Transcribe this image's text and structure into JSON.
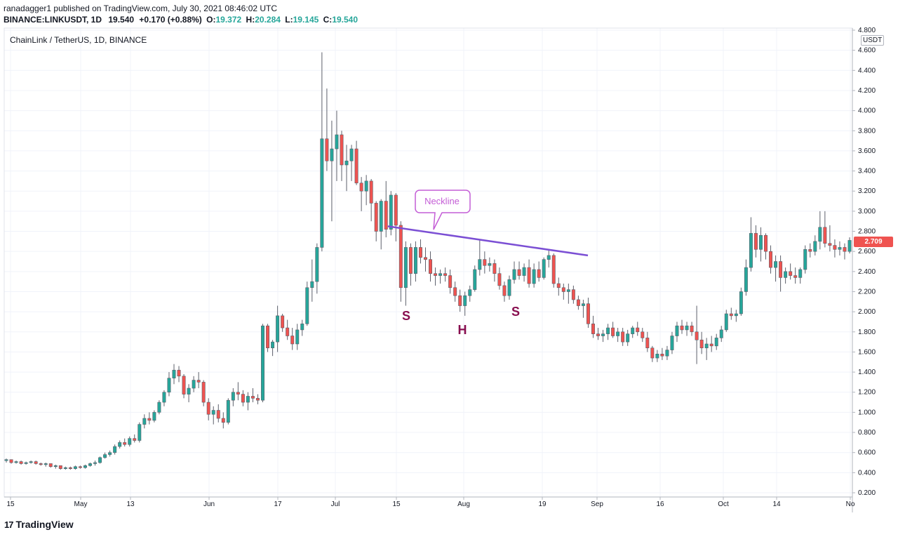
{
  "header": {
    "published": "ranadagger1 published on TradingView.com, July 30, 2021 08:46:02 UTC",
    "symbol": "BINANCE:LINKUSDT, 1D",
    "last": "19.540",
    "change": "+0.170 (+0.88%)",
    "o_label": "O:",
    "o_value": "19.372",
    "h_label": "H:",
    "h_value": "20.284",
    "l_label": "L:",
    "l_value": "19.145",
    "c_label": "C:",
    "c_value": "19.540"
  },
  "chart_title": "ChainLink / TetherUS, 1D, BINANCE",
  "unit_badge": "USDT",
  "price_tag": "2.709",
  "footer": {
    "brand": "TradingView",
    "mark": "17"
  },
  "colors": {
    "up": "#26a69a",
    "down": "#ef5350",
    "neckline": "#7b4fd4",
    "callout": "#c45ed6",
    "pattern_label": "#880e4f"
  },
  "annotations": {
    "neckline_label": "Neckline",
    "left_shoulder": "S",
    "head": "H",
    "right_shoulder": "S"
  },
  "chart_data": {
    "type": "candlestick",
    "y_ticks": [
      "4.800",
      "4.600",
      "4.400",
      "4.200",
      "4.000",
      "3.800",
      "3.600",
      "3.400",
      "3.200",
      "3.000",
      "2.800",
      "2.600",
      "2.400",
      "2.200",
      "2.000",
      "1.800",
      "1.600",
      "1.400",
      "1.200",
      "1.000",
      "0.800",
      "0.600",
      "0.400",
      "0.200"
    ],
    "x_ticks": [
      "15",
      "May",
      "13",
      "Jun",
      "17",
      "Jul",
      "15",
      "Aug",
      "19",
      "Sep",
      "16",
      "Oct",
      "14",
      "No"
    ],
    "ylim": [
      0.2,
      4.8
    ],
    "neckline": [
      [
        2.85,
        0
      ],
      [
        2.56,
        1
      ]
    ],
    "candles": [
      [
        0.52,
        0.54,
        0.5,
        0.53
      ],
      [
        0.53,
        0.53,
        0.49,
        0.5
      ],
      [
        0.5,
        0.52,
        0.49,
        0.51
      ],
      [
        0.51,
        0.52,
        0.48,
        0.49
      ],
      [
        0.49,
        0.51,
        0.48,
        0.5
      ],
      [
        0.5,
        0.52,
        0.49,
        0.51
      ],
      [
        0.51,
        0.52,
        0.48,
        0.49
      ],
      [
        0.49,
        0.5,
        0.47,
        0.48
      ],
      [
        0.48,
        0.5,
        0.46,
        0.49
      ],
      [
        0.49,
        0.49,
        0.45,
        0.46
      ],
      [
        0.46,
        0.48,
        0.44,
        0.47
      ],
      [
        0.47,
        0.47,
        0.43,
        0.44
      ],
      [
        0.44,
        0.46,
        0.43,
        0.45
      ],
      [
        0.45,
        0.46,
        0.43,
        0.44
      ],
      [
        0.44,
        0.47,
        0.43,
        0.46
      ],
      [
        0.46,
        0.47,
        0.44,
        0.45
      ],
      [
        0.45,
        0.48,
        0.44,
        0.47
      ],
      [
        0.47,
        0.5,
        0.46,
        0.49
      ],
      [
        0.49,
        0.52,
        0.47,
        0.5
      ],
      [
        0.5,
        0.56,
        0.49,
        0.55
      ],
      [
        0.55,
        0.6,
        0.54,
        0.58
      ],
      [
        0.58,
        0.62,
        0.56,
        0.6
      ],
      [
        0.6,
        0.68,
        0.58,
        0.66
      ],
      [
        0.66,
        0.72,
        0.64,
        0.7
      ],
      [
        0.7,
        0.74,
        0.66,
        0.68
      ],
      [
        0.68,
        0.76,
        0.66,
        0.74
      ],
      [
        0.74,
        0.78,
        0.7,
        0.72
      ],
      [
        0.72,
        0.9,
        0.7,
        0.88
      ],
      [
        0.88,
        0.98,
        0.84,
        0.94
      ],
      [
        0.94,
        1.0,
        0.88,
        0.92
      ],
      [
        0.92,
        1.02,
        0.9,
        1.0
      ],
      [
        1.0,
        1.12,
        0.98,
        1.1
      ],
      [
        1.1,
        1.22,
        1.06,
        1.2
      ],
      [
        1.2,
        1.4,
        1.16,
        1.34
      ],
      [
        1.34,
        1.48,
        1.28,
        1.42
      ],
      [
        1.42,
        1.46,
        1.3,
        1.36
      ],
      [
        1.36,
        1.38,
        1.14,
        1.18
      ],
      [
        1.18,
        1.28,
        1.1,
        1.24
      ],
      [
        1.24,
        1.36,
        1.2,
        1.32
      ],
      [
        1.32,
        1.4,
        1.24,
        1.3
      ],
      [
        1.3,
        1.32,
        1.06,
        1.1
      ],
      [
        1.1,
        1.14,
        0.92,
        0.98
      ],
      [
        0.98,
        1.06,
        0.88,
        1.02
      ],
      [
        1.02,
        1.08,
        0.9,
        0.94
      ],
      [
        0.94,
        1.0,
        0.84,
        0.9
      ],
      [
        0.9,
        1.14,
        0.88,
        1.12
      ],
      [
        1.12,
        1.24,
        1.06,
        1.2
      ],
      [
        1.2,
        1.3,
        1.12,
        1.18
      ],
      [
        1.18,
        1.22,
        1.06,
        1.1
      ],
      [
        1.1,
        1.2,
        1.02,
        1.16
      ],
      [
        1.16,
        1.24,
        1.1,
        1.14
      ],
      [
        1.14,
        1.18,
        1.08,
        1.12
      ],
      [
        1.12,
        1.88,
        1.1,
        1.86
      ],
      [
        1.86,
        1.88,
        1.6,
        1.64
      ],
      [
        1.64,
        1.72,
        1.56,
        1.7
      ],
      [
        1.7,
        2.06,
        1.6,
        1.96
      ],
      [
        1.96,
        1.98,
        1.8,
        1.84
      ],
      [
        1.84,
        1.92,
        1.72,
        1.76
      ],
      [
        1.76,
        1.84,
        1.62,
        1.68
      ],
      [
        1.68,
        1.88,
        1.62,
        1.82
      ],
      [
        1.82,
        1.92,
        1.76,
        1.88
      ],
      [
        1.88,
        2.3,
        1.86,
        2.24
      ],
      [
        2.24,
        2.52,
        2.1,
        2.3
      ],
      [
        2.3,
        2.68,
        2.18,
        2.64
      ],
      [
        2.64,
        4.58,
        2.6,
        3.72
      ],
      [
        3.72,
        4.22,
        3.4,
        3.5
      ],
      [
        3.5,
        3.9,
        2.9,
        3.62
      ],
      [
        3.62,
        4.0,
        3.3,
        3.76
      ],
      [
        3.76,
        3.8,
        3.3,
        3.46
      ],
      [
        3.46,
        3.66,
        3.2,
        3.5
      ],
      [
        3.5,
        3.66,
        3.3,
        3.62
      ],
      [
        3.62,
        3.7,
        3.26,
        3.28
      ],
      [
        3.28,
        3.34,
        3.0,
        3.2
      ],
      [
        3.2,
        3.36,
        3.06,
        3.3
      ],
      [
        3.3,
        3.32,
        2.9,
        3.08
      ],
      [
        3.08,
        3.1,
        2.7,
        2.8
      ],
      [
        2.8,
        3.12,
        2.62,
        3.1
      ],
      [
        3.1,
        3.3,
        2.74,
        2.82
      ],
      [
        2.82,
        3.2,
        2.76,
        3.16
      ],
      [
        3.16,
        3.18,
        2.7,
        2.86
      ],
      [
        2.86,
        2.9,
        2.1,
        2.24
      ],
      [
        2.24,
        2.7,
        2.06,
        2.64
      ],
      [
        2.64,
        2.68,
        2.26,
        2.38
      ],
      [
        2.38,
        2.7,
        2.3,
        2.64
      ],
      [
        2.64,
        2.72,
        2.48,
        2.54
      ],
      [
        2.54,
        2.64,
        2.4,
        2.52
      ],
      [
        2.52,
        2.6,
        2.3,
        2.38
      ],
      [
        2.38,
        2.44,
        2.26,
        2.36
      ],
      [
        2.36,
        2.42,
        2.28,
        2.38
      ],
      [
        2.38,
        2.44,
        2.3,
        2.36
      ],
      [
        2.36,
        2.42,
        2.18,
        2.24
      ],
      [
        2.24,
        2.3,
        2.1,
        2.16
      ],
      [
        2.16,
        2.22,
        2.0,
        2.06
      ],
      [
        2.06,
        2.2,
        1.96,
        2.16
      ],
      [
        2.16,
        2.26,
        2.1,
        2.22
      ],
      [
        2.22,
        2.46,
        2.2,
        2.42
      ],
      [
        2.42,
        2.72,
        2.36,
        2.52
      ],
      [
        2.52,
        2.6,
        2.38,
        2.46
      ],
      [
        2.46,
        2.54,
        2.4,
        2.48
      ],
      [
        2.48,
        2.52,
        2.3,
        2.38
      ],
      [
        2.38,
        2.44,
        2.22,
        2.26
      ],
      [
        2.26,
        2.3,
        2.1,
        2.16
      ],
      [
        2.16,
        2.36,
        2.12,
        2.32
      ],
      [
        2.32,
        2.5,
        2.28,
        2.42
      ],
      [
        2.42,
        2.5,
        2.32,
        2.36
      ],
      [
        2.36,
        2.48,
        2.3,
        2.44
      ],
      [
        2.44,
        2.52,
        2.24,
        2.28
      ],
      [
        2.28,
        2.48,
        2.24,
        2.42
      ],
      [
        2.42,
        2.5,
        2.3,
        2.34
      ],
      [
        2.34,
        2.54,
        2.32,
        2.52
      ],
      [
        2.52,
        2.62,
        2.44,
        2.56
      ],
      [
        2.56,
        2.58,
        2.24,
        2.28
      ],
      [
        2.28,
        2.34,
        2.16,
        2.24
      ],
      [
        2.24,
        2.28,
        2.12,
        2.2
      ],
      [
        2.2,
        2.28,
        2.08,
        2.22
      ],
      [
        2.22,
        2.26,
        2.08,
        2.12
      ],
      [
        2.12,
        2.16,
        2.02,
        2.06
      ],
      [
        2.06,
        2.12,
        1.94,
        2.08
      ],
      [
        2.08,
        2.14,
        1.84,
        1.88
      ],
      [
        1.88,
        1.96,
        1.74,
        1.78
      ],
      [
        1.78,
        1.84,
        1.72,
        1.76
      ],
      [
        1.76,
        1.82,
        1.7,
        1.78
      ],
      [
        1.78,
        1.88,
        1.72,
        1.84
      ],
      [
        1.84,
        1.9,
        1.74,
        1.76
      ],
      [
        1.76,
        1.84,
        1.7,
        1.8
      ],
      [
        1.8,
        1.84,
        1.66,
        1.7
      ],
      [
        1.7,
        1.82,
        1.66,
        1.78
      ],
      [
        1.78,
        1.86,
        1.74,
        1.84
      ],
      [
        1.84,
        1.9,
        1.76,
        1.8
      ],
      [
        1.8,
        1.84,
        1.7,
        1.74
      ],
      [
        1.74,
        1.8,
        1.6,
        1.64
      ],
      [
        1.64,
        1.66,
        1.5,
        1.54
      ],
      [
        1.54,
        1.62,
        1.5,
        1.58
      ],
      [
        1.58,
        1.64,
        1.52,
        1.56
      ],
      [
        1.56,
        1.66,
        1.52,
        1.62
      ],
      [
        1.62,
        1.8,
        1.58,
        1.76
      ],
      [
        1.76,
        1.9,
        1.7,
        1.86
      ],
      [
        1.86,
        1.92,
        1.78,
        1.82
      ],
      [
        1.82,
        1.9,
        1.76,
        1.86
      ],
      [
        1.86,
        1.9,
        1.76,
        1.8
      ],
      [
        1.8,
        2.06,
        1.48,
        1.72
      ],
      [
        1.72,
        1.8,
        1.58,
        1.64
      ],
      [
        1.64,
        1.74,
        1.52,
        1.68
      ],
      [
        1.68,
        1.76,
        1.6,
        1.66
      ],
      [
        1.66,
        1.78,
        1.62,
        1.74
      ],
      [
        1.74,
        1.86,
        1.7,
        1.82
      ],
      [
        1.82,
        2.02,
        1.8,
        1.98
      ],
      [
        1.98,
        2.04,
        1.92,
        1.96
      ],
      [
        1.96,
        2.02,
        1.9,
        1.98
      ],
      [
        1.98,
        2.24,
        1.96,
        2.2
      ],
      [
        2.2,
        2.52,
        2.16,
        2.44
      ],
      [
        2.44,
        2.94,
        2.4,
        2.78
      ],
      [
        2.78,
        2.86,
        2.54,
        2.62
      ],
      [
        2.62,
        2.84,
        2.5,
        2.76
      ],
      [
        2.76,
        2.78,
        2.52,
        2.6
      ],
      [
        2.6,
        2.66,
        2.38,
        2.44
      ],
      [
        2.44,
        2.56,
        2.3,
        2.5
      ],
      [
        2.5,
        2.56,
        2.2,
        2.34
      ],
      [
        2.34,
        2.44,
        2.28,
        2.4
      ],
      [
        2.4,
        2.48,
        2.32,
        2.36
      ],
      [
        2.36,
        2.44,
        2.28,
        2.34
      ],
      [
        2.34,
        2.44,
        2.28,
        2.42
      ],
      [
        2.42,
        2.66,
        2.38,
        2.62
      ],
      [
        2.62,
        2.68,
        2.54,
        2.6
      ],
      [
        2.6,
        2.76,
        2.56,
        2.7
      ],
      [
        2.7,
        3.0,
        2.62,
        2.84
      ],
      [
        2.84,
        3.0,
        2.64,
        2.68
      ],
      [
        2.68,
        2.86,
        2.6,
        2.66
      ],
      [
        2.66,
        2.72,
        2.54,
        2.62
      ],
      [
        2.62,
        2.7,
        2.56,
        2.64
      ],
      [
        2.64,
        2.68,
        2.52,
        2.6
      ],
      [
        2.6,
        2.74,
        2.58,
        2.71
      ]
    ]
  }
}
